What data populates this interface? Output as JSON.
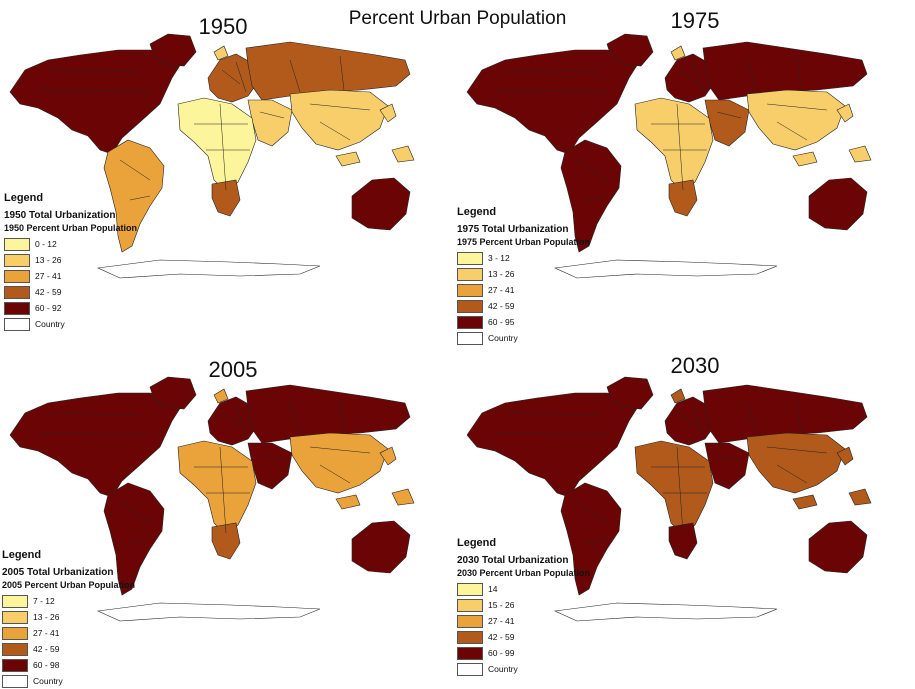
{
  "title": "Percent Urban Population",
  "class_colors": [
    "#fdf59b",
    "#f8ce6b",
    "#eaa23a",
    "#b25a1c",
    "#6b0505"
  ],
  "country_fill": "#ffffff",
  "border_color": "#222222",
  "panels": [
    {
      "year": "1950",
      "legend": {
        "heading": "Legend",
        "layer": "1950 Total Urbanization",
        "field": "1950 Percent Urban Population",
        "classes": [
          "0 - 12",
          "13 - 26",
          "27 - 41",
          "42 - 59",
          "60 - 92"
        ],
        "other": "Country"
      },
      "region_classes": {
        "north_america": 4,
        "south_america": 2,
        "europe": 3,
        "russia": 3,
        "africa": 0,
        "south_africa": 3,
        "asia": 1,
        "middle_east": 1,
        "australia": 4,
        "antarctica": "country"
      }
    },
    {
      "year": "1975",
      "legend": {
        "heading": "Legend",
        "layer": "1975 Total Urbanization",
        "field": "1975 Percent Urban Population",
        "classes": [
          "3 - 12",
          "13 - 26",
          "27 - 41",
          "42 - 59",
          "60 - 95"
        ],
        "other": "Country"
      },
      "region_classes": {
        "north_america": 4,
        "south_america": 4,
        "europe": 4,
        "russia": 4,
        "africa": 1,
        "south_africa": 3,
        "asia": 1,
        "middle_east": 3,
        "australia": 4,
        "antarctica": "country"
      }
    },
    {
      "year": "2005",
      "legend": {
        "heading": "Legend",
        "layer": "2005 Total Urbanization",
        "field": "2005 Percent Urban Population",
        "classes": [
          "7 - 12",
          "13 - 26",
          "27 - 41",
          "42 - 59",
          "60 - 98"
        ],
        "other": "Country"
      },
      "region_classes": {
        "north_america": 4,
        "south_america": 4,
        "europe": 4,
        "russia": 4,
        "africa": 2,
        "south_africa": 3,
        "asia": 2,
        "middle_east": 4,
        "australia": 4,
        "antarctica": "country"
      }
    },
    {
      "year": "2030",
      "legend": {
        "heading": "Legend",
        "layer": "2030 Total Urbanization",
        "field": "2030 Percent Urban Population",
        "classes": [
          "14",
          "15 - 26",
          "27 - 41",
          "42 - 59",
          "60 - 99"
        ],
        "other": "Country"
      },
      "region_classes": {
        "north_america": 4,
        "south_america": 4,
        "europe": 4,
        "russia": 4,
        "africa": 3,
        "south_africa": 4,
        "asia": 3,
        "middle_east": 4,
        "australia": 4,
        "antarctica": "country"
      }
    }
  ]
}
